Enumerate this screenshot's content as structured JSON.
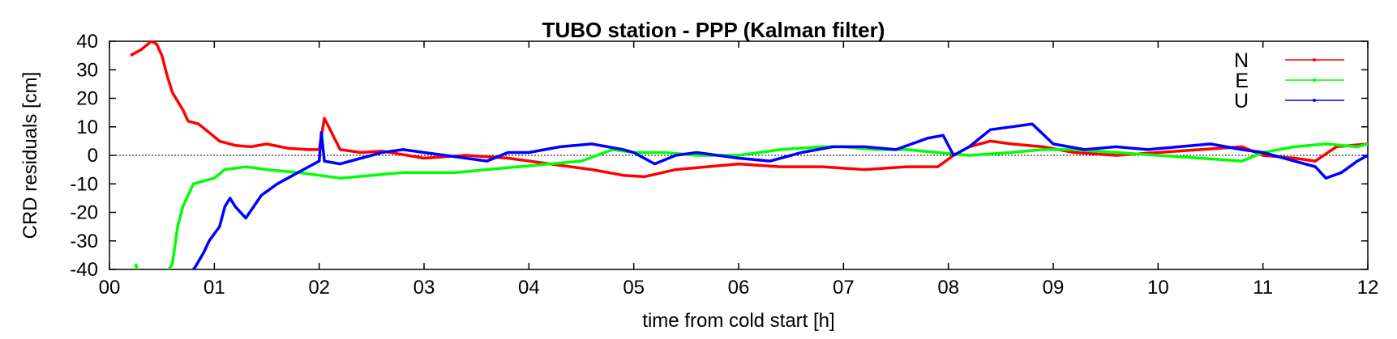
{
  "chart_data": {
    "type": "line",
    "title": "TUBO station - PPP (Kalman filter)",
    "xlabel": "time from cold start [h]",
    "ylabel": "CRD residuals [cm]",
    "xlim": [
      0,
      12
    ],
    "ylim": [
      -40,
      40
    ],
    "x_ticks": [
      "00",
      "01",
      "02",
      "03",
      "04",
      "05",
      "06",
      "07",
      "08",
      "09",
      "10",
      "11",
      "12"
    ],
    "y_ticks": [
      "40",
      "30",
      "20",
      "10",
      "0",
      "-10",
      "-20",
      "-30",
      "-40"
    ],
    "legend_position": "top-right",
    "zero_reference_line": "dotted",
    "series": [
      {
        "name": "N",
        "color": "#ff0000",
        "x": [
          0.2,
          0.3,
          0.4,
          0.45,
          0.5,
          0.55,
          0.6,
          0.7,
          0.75,
          0.85,
          0.95,
          1.05,
          1.2,
          1.35,
          1.5,
          1.7,
          1.9,
          2.0,
          2.05,
          2.2,
          2.4,
          2.6,
          3.0,
          3.4,
          3.8,
          4.2,
          4.6,
          4.9,
          5.1,
          5.4,
          5.7,
          6.0,
          6.4,
          6.8,
          7.2,
          7.6,
          7.9,
          8.05,
          8.2,
          8.4,
          8.6,
          8.9,
          9.2,
          9.6,
          10.0,
          10.4,
          10.8,
          11.0,
          11.3,
          11.5,
          11.7,
          12.0
        ],
        "y": [
          35,
          37,
          40,
          39,
          35,
          28,
          22,
          16,
          12,
          11,
          8,
          5,
          3.5,
          3,
          4,
          2.5,
          2,
          2,
          13,
          2,
          1,
          1.5,
          -1,
          0,
          -1,
          -3,
          -5,
          -7,
          -7.5,
          -5,
          -4,
          -3,
          -4,
          -4,
          -5,
          -4,
          -4,
          0,
          3,
          5,
          4,
          3,
          1,
          0,
          1,
          2,
          3,
          0,
          -1,
          -2,
          3,
          4
        ]
      },
      {
        "name": "E",
        "color": "#00ff00",
        "x": [
          0.25,
          0.27,
          0.55,
          0.6,
          0.65,
          0.7,
          0.8,
          0.9,
          1.0,
          1.1,
          1.3,
          1.5,
          1.8,
          2.0,
          2.2,
          2.5,
          2.8,
          3.0,
          3.3,
          3.6,
          3.9,
          4.2,
          4.5,
          4.8,
          5.0,
          5.3,
          5.6,
          6.0,
          6.4,
          6.8,
          7.0,
          7.3,
          7.6,
          7.9,
          8.2,
          8.6,
          8.9,
          9.2,
          9.6,
          10.0,
          10.4,
          10.8,
          11.0,
          11.3,
          11.6,
          11.9,
          12.0
        ],
        "y": [
          -38,
          -41,
          -41,
          -38,
          -25,
          -18,
          -10,
          -9,
          -8,
          -5,
          -4,
          -5,
          -6,
          -7,
          -8,
          -7,
          -6,
          -6,
          -6,
          -5,
          -4,
          -3,
          -2,
          2,
          1,
          1,
          0,
          0,
          2,
          3,
          3,
          2,
          2,
          1,
          0,
          1,
          2,
          2,
          1,
          0,
          -1,
          -2,
          1,
          3,
          4,
          3,
          4
        ]
      },
      {
        "name": "U",
        "color": "#0000ff",
        "x": [
          0.78,
          0.82,
          0.9,
          0.95,
          1.05,
          1.1,
          1.15,
          1.2,
          1.3,
          1.45,
          1.6,
          1.75,
          1.9,
          2.0,
          2.02,
          2.05,
          2.2,
          2.4,
          2.6,
          2.8,
          3.0,
          3.2,
          3.4,
          3.6,
          3.8,
          4.0,
          4.3,
          4.6,
          4.9,
          5.0,
          5.2,
          5.4,
          5.6,
          5.8,
          6.0,
          6.3,
          6.6,
          6.9,
          7.2,
          7.5,
          7.8,
          7.95,
          8.05,
          8.2,
          8.4,
          8.6,
          8.8,
          9.0,
          9.3,
          9.6,
          9.9,
          10.2,
          10.5,
          10.8,
          11.0,
          11.3,
          11.5,
          11.6,
          11.75,
          11.9,
          12.0
        ],
        "y": [
          -41,
          -39,
          -34,
          -30,
          -25,
          -18,
          -15,
          -18,
          -22,
          -14,
          -10,
          -7,
          -4,
          -2,
          8,
          -2,
          -3,
          -1,
          1,
          2,
          1,
          0,
          -1,
          -2,
          1,
          1,
          3,
          4,
          2,
          1,
          -3,
          0,
          1,
          0,
          -1,
          -2,
          1,
          3,
          3,
          2,
          6,
          7,
          0,
          3,
          9,
          10,
          11,
          4,
          2,
          3,
          2,
          3,
          4,
          2,
          1,
          -2,
          -4,
          -8,
          -6,
          -2,
          0
        ]
      }
    ]
  }
}
